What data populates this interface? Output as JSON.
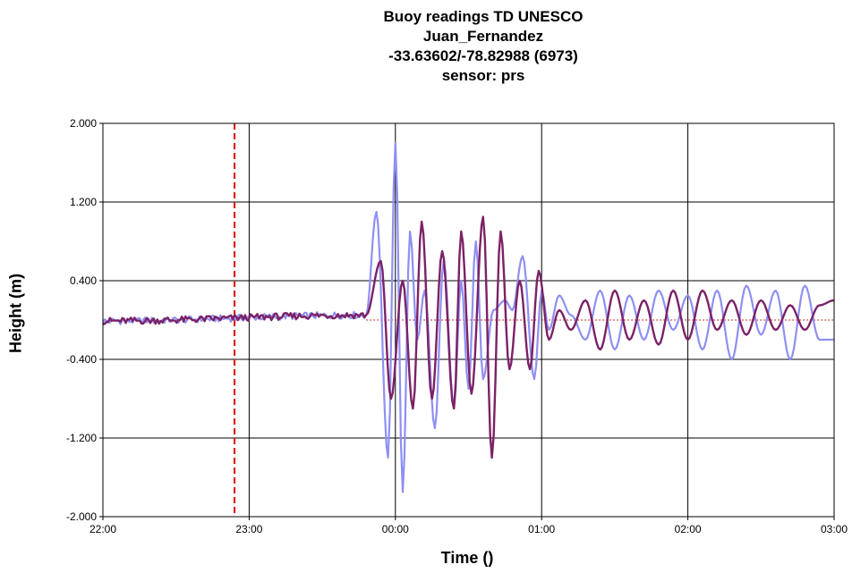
{
  "chart_data": {
    "type": "line",
    "title_lines": [
      "Buoy readings TD UNESCO",
      "Juan_Fernandez",
      "-33.63602/-78.82988 (6973)",
      "sensor: prs"
    ],
    "xlabel": "Time ()",
    "ylabel": "Height (m)",
    "x_tick_labels": [
      "22:00",
      "23:00",
      "00:00",
      "01:00",
      "02:00",
      "03:00"
    ],
    "y_tick_labels": [
      "2.000",
      "1.200",
      "0.400",
      "-0.400",
      "-1.200",
      "-2.000"
    ],
    "y_ticks": [
      2.0,
      1.2,
      0.4,
      -0.4,
      -1.2,
      -2.0
    ],
    "xlim_hours": [
      0,
      5
    ],
    "ylim": [
      -2.0,
      2.0
    ],
    "grid": true,
    "reference_lines": [
      {
        "orientation": "vertical",
        "x_hours": 0.9,
        "style": "dashed",
        "color": "#e0201a"
      },
      {
        "orientation": "horizontal",
        "y": 0.0,
        "style": "dotted",
        "color": "#cc2222",
        "x_start_hours": 1.8
      }
    ],
    "series": [
      {
        "color": "#8f8ff5",
        "x_hours": [
          0,
          1.8,
          1.87,
          1.95,
          2.0,
          2.05,
          2.1,
          2.15,
          2.2,
          2.27,
          2.33,
          2.4,
          2.45,
          2.5,
          2.55,
          2.6,
          2.67,
          2.75,
          2.8,
          2.87,
          2.95,
          3.0,
          3.05,
          3.12,
          3.2,
          3.3,
          3.4,
          3.5,
          3.6,
          3.7,
          3.8,
          3.9,
          4.0,
          4.1,
          4.2,
          4.3,
          4.4,
          4.5,
          4.6,
          4.7,
          4.8,
          4.9,
          5.0
        ],
        "values": [
          -0.01,
          0.05,
          1.1,
          -1.4,
          1.8,
          -1.75,
          0.9,
          -0.2,
          0.3,
          -1.1,
          0.6,
          -0.9,
          0.4,
          -0.7,
          0.8,
          -0.6,
          0.1,
          0.2,
          0.1,
          0.65,
          -0.6,
          0.3,
          -0.1,
          0.25,
          0.05,
          -0.2,
          0.3,
          -0.3,
          0.25,
          -0.2,
          0.3,
          -0.1,
          0.25,
          -0.3,
          0.3,
          -0.4,
          0.35,
          -0.15,
          0.3,
          -0.4,
          0.35,
          -0.2,
          -0.2
        ]
      },
      {
        "color": "#7b2266",
        "x_hours": [
          0,
          1.8,
          1.9,
          1.97,
          2.05,
          2.12,
          2.18,
          2.25,
          2.32,
          2.4,
          2.45,
          2.52,
          2.6,
          2.66,
          2.72,
          2.78,
          2.85,
          2.92,
          2.98,
          3.05,
          3.12,
          3.2,
          3.3,
          3.4,
          3.5,
          3.6,
          3.7,
          3.8,
          3.9,
          4.0,
          4.1,
          4.2,
          4.3,
          4.4,
          4.5,
          4.6,
          4.7,
          4.8,
          4.9,
          5.0
        ],
        "values": [
          -0.01,
          0.05,
          0.6,
          -0.8,
          0.4,
          -0.9,
          1.0,
          -0.8,
          0.7,
          -0.9,
          0.9,
          -0.75,
          1.05,
          -1.4,
          0.9,
          -0.5,
          0.4,
          -0.5,
          0.5,
          -0.2,
          0.1,
          -0.1,
          0.2,
          -0.3,
          0.3,
          -0.2,
          0.2,
          -0.25,
          0.3,
          -0.2,
          0.3,
          -0.1,
          0.2,
          -0.15,
          0.2,
          -0.1,
          0.15,
          -0.1,
          0.15,
          0.2
        ]
      }
    ]
  }
}
